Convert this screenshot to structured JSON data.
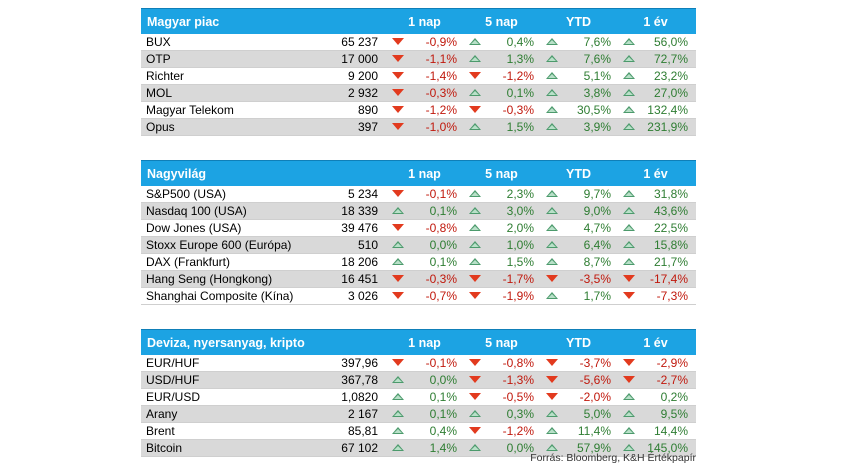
{
  "columns": [
    "1 nap",
    "5 nap",
    "YTD",
    "1 év"
  ],
  "sections": [
    {
      "title": "Magyar piac",
      "rows": [
        {
          "name": "BUX",
          "value": "65 237",
          "d1": "-0,9%",
          "d5": "0,4%",
          "ytd": "7,6%",
          "y1": "56,0%"
        },
        {
          "name": "OTP",
          "value": "17 000",
          "d1": "-1,1%",
          "d5": "1,3%",
          "ytd": "7,6%",
          "y1": "72,7%"
        },
        {
          "name": "Richter",
          "value": "9 200",
          "d1": "-1,4%",
          "d5": "-1,2%",
          "ytd": "5,1%",
          "y1": "23,2%"
        },
        {
          "name": "MOL",
          "value": "2 932",
          "d1": "-0,3%",
          "d5": "0,1%",
          "ytd": "3,8%",
          "y1": "27,0%"
        },
        {
          "name": "Magyar Telekom",
          "value": "890",
          "d1": "-1,2%",
          "d5": "-0,3%",
          "ytd": "30,5%",
          "y1": "132,4%"
        },
        {
          "name": "Opus",
          "value": "397",
          "d1": "-1,0%",
          "d5": "1,5%",
          "ytd": "3,9%",
          "y1": "231,9%"
        }
      ]
    },
    {
      "title": "Nagyvilág",
      "rows": [
        {
          "name": "S&P500 (USA)",
          "value": "5 234",
          "d1": "-0,1%",
          "d5": "2,3%",
          "ytd": "9,7%",
          "y1": "31,8%"
        },
        {
          "name": "Nasdaq 100 (USA)",
          "value": "18 339",
          "d1": "0,1%",
          "d5": "3,0%",
          "ytd": "9,0%",
          "y1": "43,6%"
        },
        {
          "name": "Dow Jones (USA)",
          "value": "39 476",
          "d1": "-0,8%",
          "d5": "2,0%",
          "ytd": "4,7%",
          "y1": "22,5%"
        },
        {
          "name": "Stoxx Europe 600 (Európa)",
          "value": "510",
          "d1": "0,0%",
          "d5": "1,0%",
          "ytd": "6,4%",
          "y1": "15,8%"
        },
        {
          "name": "DAX (Frankfurt)",
          "value": "18 206",
          "d1": "0,1%",
          "d5": "1,5%",
          "ytd": "8,7%",
          "y1": "21,7%"
        },
        {
          "name": "Hang Seng (Hongkong)",
          "value": "16 451",
          "d1": "-0,3%",
          "d5": "-1,7%",
          "ytd": "-3,5%",
          "y1": "-17,4%"
        },
        {
          "name": "Shanghai Composite (Kína)",
          "value": "3 026",
          "d1": "-0,7%",
          "d5": "-1,9%",
          "ytd": "1,7%",
          "y1": "-7,3%"
        }
      ]
    },
    {
      "title": "Deviza, nyersanyag, kripto",
      "rows": [
        {
          "name": "EUR/HUF",
          "value": "397,96",
          "d1": "-0,1%",
          "d5": "-0,8%",
          "ytd": "-3,7%",
          "y1": "-2,9%"
        },
        {
          "name": "USD/HUF",
          "value": "367,78",
          "d1": "0,0%",
          "d5": "-1,3%",
          "ytd": "-5,6%",
          "y1": "-2,7%"
        },
        {
          "name": "EUR/USD",
          "value": "1,0820",
          "d1": "0,1%",
          "d5": "-0,5%",
          "ytd": "-2,0%",
          "y1": "0,2%"
        },
        {
          "name": "Arany",
          "value": "2 167",
          "d1": "0,1%",
          "d5": "0,3%",
          "ytd": "5,0%",
          "y1": "9,5%"
        },
        {
          "name": "Brent",
          "value": "85,81",
          "d1": "0,4%",
          "d5": "-1,2%",
          "ytd": "11,4%",
          "y1": "14,4%"
        },
        {
          "name": "Bitcoin",
          "value": "67 102",
          "d1": "1,4%",
          "d5": "0,0%",
          "ytd": "57,9%",
          "y1": "145,0%"
        }
      ]
    }
  ],
  "footer": "Forrás: Bloomberg, K&H Értékpapír",
  "colors": {
    "header_bg": "#1ca3e3",
    "up": "#4c9a6c",
    "down": "#e23a1e",
    "neg_text": "#c0180c",
    "pos_text": "#2e7d32",
    "alt_row": "#d9d9d9"
  }
}
